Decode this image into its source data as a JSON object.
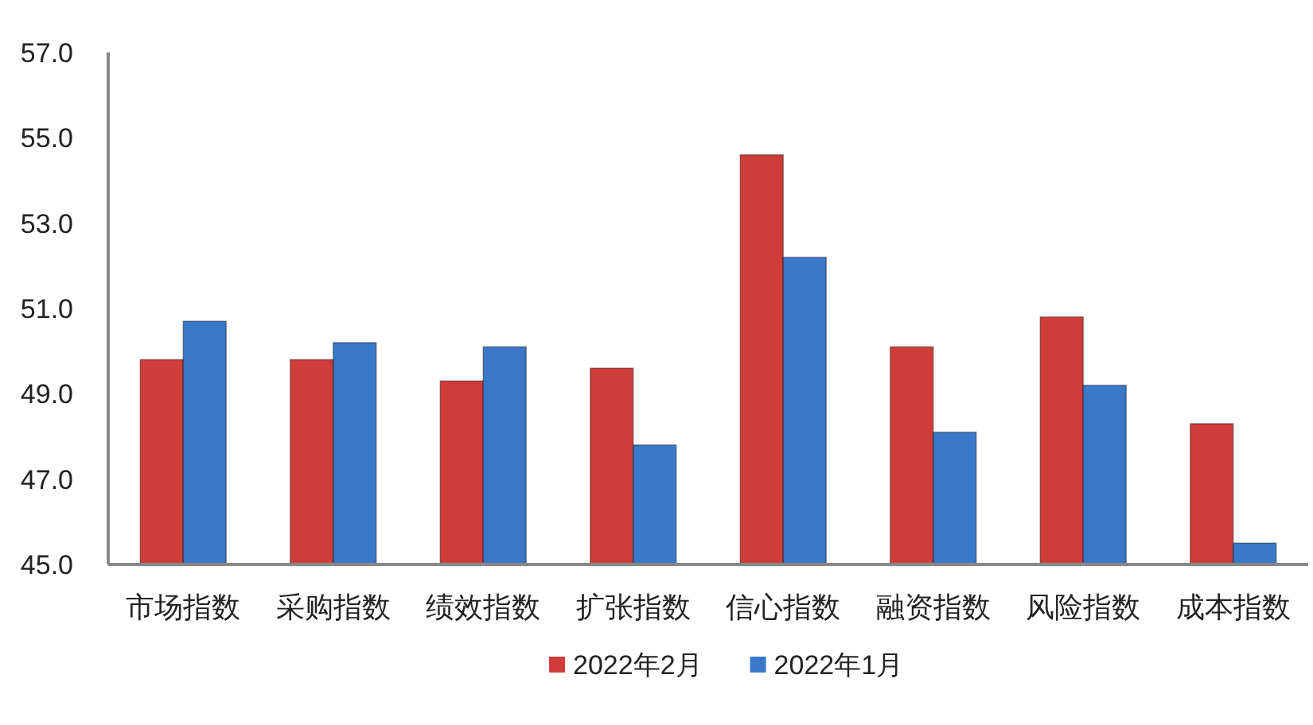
{
  "chart_data": {
    "type": "bar",
    "categories": [
      "市场指数",
      "采购指数",
      "绩效指数",
      "扩张指数",
      "信心指数",
      "融资指数",
      "风险指数",
      "成本指数"
    ],
    "series": [
      {
        "name": "2022年2月",
        "color": "#d03c3a",
        "values": [
          49.8,
          49.8,
          49.3,
          49.6,
          54.6,
          50.1,
          50.8,
          48.3
        ]
      },
      {
        "name": "2022年1月",
        "color": "#3a78c8",
        "values": [
          50.7,
          50.2,
          50.1,
          47.8,
          52.2,
          48.1,
          49.2,
          45.5
        ]
      }
    ],
    "ylim": [
      45,
      57
    ],
    "yticks": [
      {
        "value": 45,
        "label": "45.0"
      },
      {
        "value": 47,
        "label": "47.0"
      },
      {
        "value": 49,
        "label": "49.0"
      },
      {
        "value": 51,
        "label": "51.0"
      },
      {
        "value": 53,
        "label": "53.0"
      },
      {
        "value": 55,
        "label": "55.0"
      },
      {
        "value": 57,
        "label": "57.0"
      }
    ],
    "grid": false,
    "legend": "bottom"
  }
}
